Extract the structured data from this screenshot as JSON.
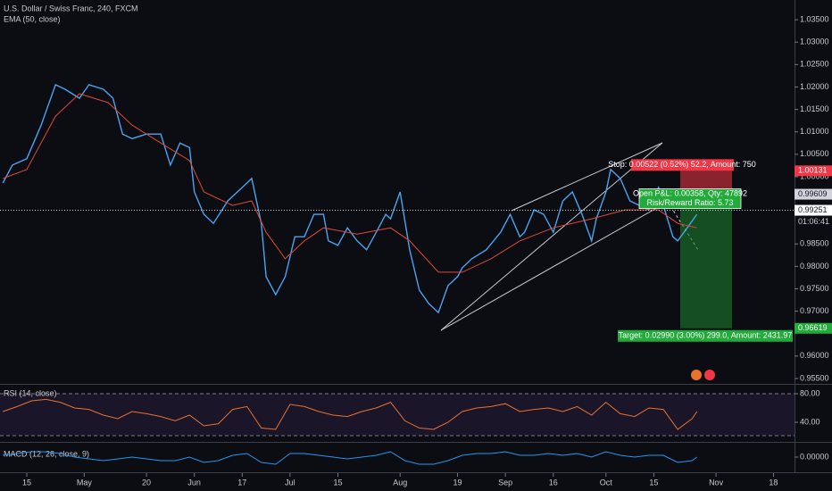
{
  "chart_data": [
    {
      "type": "line",
      "title": "U.S. Dollar / Swiss Franc, 240, FXCM",
      "xlim": [
        -5.6,
        160.4
      ],
      "ylim": [
        0.9538,
        1.0394
      ],
      "yticks": [
        {
          "value": 1.035,
          "label": "1.03500"
        },
        {
          "value": 1.03,
          "label": "1.03000"
        },
        {
          "value": 1.025,
          "label": "1.02500"
        },
        {
          "value": 1.02,
          "label": "1.02000"
        },
        {
          "value": 1.015,
          "label": "1.01500"
        },
        {
          "value": 1.01,
          "label": "1.01000"
        },
        {
          "value": 1.005,
          "label": "1.00500"
        },
        {
          "value": 1.0,
          "label": "1.00000"
        },
        {
          "value": 0.985,
          "label": "0.98500"
        },
        {
          "value": 0.98,
          "label": "0.98000"
        },
        {
          "value": 0.975,
          "label": "0.97500"
        },
        {
          "value": 0.97,
          "label": "0.97000"
        },
        {
          "value": 0.96,
          "label": "0.96000"
        },
        {
          "value": 0.955,
          "label": "0.95500"
        }
      ],
      "xticks": [
        {
          "value": 0,
          "label": "15"
        },
        {
          "value": 12,
          "label": "May"
        },
        {
          "value": 25,
          "label": "20"
        },
        {
          "value": 35,
          "label": "Jun"
        },
        {
          "value": 45,
          "label": "17"
        },
        {
          "value": 55,
          "label": "Jul"
        },
        {
          "value": 65,
          "label": "15"
        },
        {
          "value": 78,
          "label": "Aug"
        },
        {
          "value": 90,
          "label": "19"
        },
        {
          "value": 100,
          "label": "Sep"
        },
        {
          "value": 110,
          "label": "16"
        },
        {
          "value": 121,
          "label": "Oct"
        },
        {
          "value": 131,
          "label": "15"
        },
        {
          "value": 144,
          "label": "Nov"
        },
        {
          "value": 156,
          "label": "18"
        }
      ],
      "series": [
        {
          "color": "#4aa3f0",
          "x": [
            -5,
            -3,
            0,
            3,
            6,
            8,
            11,
            13,
            16,
            18,
            20,
            22,
            25,
            28,
            30,
            32,
            34,
            35,
            37,
            39,
            42,
            45,
            47,
            49,
            50,
            52,
            54,
            56,
            58,
            60,
            62,
            63,
            65,
            67,
            69,
            71,
            73,
            75,
            76,
            78,
            80,
            82,
            84,
            86,
            88,
            90,
            91,
            93,
            96,
            99,
            101,
            103,
            104,
            106,
            108,
            110,
            112,
            114,
            116,
            118,
            119,
            121,
            122,
            124,
            126,
            128,
            130,
            132,
            133,
            135,
            136,
            138,
            140
          ],
          "values": [
            0.9986,
            1.0026,
            1.004,
            1.0115,
            1.0205,
            1.0195,
            1.0175,
            1.0205,
            1.0195,
            1.0175,
            1.0095,
            1.0085,
            1.0095,
            1.0095,
            1.0026,
            1.0075,
            1.0065,
            0.9966,
            0.9916,
            0.9896,
            0.9946,
            0.9976,
            0.9996,
            0.9896,
            0.9777,
            0.9737,
            0.9777,
            0.9866,
            0.9866,
            0.9916,
            0.9916,
            0.9857,
            0.9847,
            0.9886,
            0.9857,
            0.9837,
            0.9876,
            0.9916,
            0.9906,
            0.9966,
            0.9837,
            0.9747,
            0.9717,
            0.9697,
            0.9757,
            0.9777,
            0.9797,
            0.9817,
            0.9837,
            0.9876,
            0.9916,
            0.9866,
            0.9876,
            0.9926,
            0.9916,
            0.9876,
            0.9946,
            0.9966,
            0.9916,
            0.9857,
            0.9906,
            0.9966,
            1.0016,
            0.9996,
            0.9946,
            0.9936,
            0.9926,
            0.9976,
            0.9936,
            0.9866,
            0.9857,
            0.9886,
            0.9916
          ]
        },
        {
          "name": "EMA (50, close)",
          "color": "#e0463a",
          "x": [
            -5,
            0,
            6,
            11,
            17,
            22,
            28,
            34,
            37,
            43,
            47,
            50,
            54,
            58,
            62,
            69,
            76,
            80,
            86,
            91,
            97,
            103,
            110,
            118,
            125,
            132,
            136,
            140
          ],
          "values": [
            0.9996,
            1.0016,
            1.0135,
            1.0185,
            1.0165,
            1.0115,
            1.0075,
            1.0036,
            0.9966,
            0.9936,
            0.9946,
            0.9876,
            0.9817,
            0.9857,
            0.9886,
            0.9872,
            0.9886,
            0.9857,
            0.9787,
            0.9787,
            0.9817,
            0.9857,
            0.9886,
            0.9906,
            0.9926,
            0.9926,
            0.9896,
            0.9886
          ]
        }
      ]
    },
    {
      "type": "line",
      "title": "RSI (14, close)",
      "xlim": [
        -5.6,
        160.4
      ],
      "ylim": [
        15,
        91.25
      ],
      "yticks": [
        {
          "value": 80,
          "label": "80.00"
        },
        {
          "value": 40,
          "label": "40.00"
        }
      ],
      "series": [
        {
          "color": "#e8722e",
          "x": [
            -5,
            -2,
            1,
            4,
            7,
            10,
            13,
            16,
            19,
            22,
            25,
            28,
            31,
            34,
            37,
            40,
            43,
            46,
            49,
            52,
            55,
            58,
            61,
            64,
            67,
            70,
            73,
            76,
            79,
            82,
            85,
            88,
            91,
            94,
            97,
            100,
            103,
            106,
            109,
            112,
            115,
            118,
            121,
            124,
            127,
            130,
            133,
            136,
            139,
            140
          ],
          "values": [
            55,
            62,
            70,
            72,
            68,
            60,
            58,
            50,
            45,
            55,
            52,
            48,
            42,
            50,
            35,
            38,
            58,
            62,
            32,
            30,
            65,
            62,
            55,
            50,
            48,
            55,
            60,
            68,
            42,
            32,
            30,
            40,
            55,
            60,
            62,
            66,
            55,
            58,
            60,
            55,
            62,
            50,
            68,
            52,
            48,
            60,
            58,
            30,
            45,
            55
          ]
        }
      ]
    },
    {
      "type": "line",
      "title": "MACD (12, 26, close, 9)",
      "xlim": [
        -5.6,
        160.4
      ],
      "ylim": [
        -0.0075,
        0.0075
      ],
      "yticks": [
        {
          "value": 0,
          "label": "0.00000"
        }
      ],
      "series": [
        {
          "color": "#2196f3",
          "x": [
            -5,
            -2,
            1,
            4,
            7,
            10,
            13,
            16,
            19,
            22,
            25,
            28,
            31,
            34,
            37,
            40,
            43,
            46,
            49,
            52,
            55,
            58,
            61,
            64,
            67,
            70,
            73,
            76,
            79,
            82,
            85,
            88,
            91,
            94,
            97,
            100,
            103,
            106,
            109,
            112,
            115,
            118,
            121,
            124,
            127,
            130,
            133,
            136,
            139,
            140
          ],
          "values": [
            0.001,
            0.002,
            0.003,
            0.003,
            0.002,
            0,
            -0.001,
            -0.002,
            -0.001,
            0,
            -0.001,
            -0.002,
            -0.002,
            0,
            -0.003,
            -0.002,
            0.001,
            0.002,
            -0.003,
            -0.004,
            0.002,
            0.002,
            0.001,
            0,
            -0.001,
            0,
            0.001,
            0.003,
            -0.002,
            -0.004,
            -0.004,
            -0.002,
            0.001,
            0.002,
            0.002,
            0.003,
            0.001,
            0.001,
            0.002,
            0.001,
            0.002,
            0,
            0.003,
            0.001,
            0,
            0.001,
            0.001,
            -0.003,
            -0.002,
            0
          ]
        }
      ]
    }
  ],
  "price_markers": [
    {
      "value": 1.00131,
      "color": "#f23645",
      "text_color": "#ffffff"
    },
    {
      "value": 0.99609,
      "color": "#d1d4dc",
      "text_color": "#131722"
    },
    {
      "value": 0.99251,
      "color": "#ffffff",
      "text_color": "#131722"
    },
    {
      "value": 0.96619,
      "color": "#22ab3a",
      "text_color": "#ffffff"
    }
  ],
  "countdown": "01:06:41",
  "position_tool": {
    "stop": "Stop: 0.00522 (0.52%) 52.2, Amount: 750",
    "pnl": "Open P&L: 0.00358, Qty: 47892",
    "rr": "Risk/Reward Ratio: 5.73",
    "target": "Target: 0.02990 (3.00%) 299.0, Amount: 2431.97"
  }
}
